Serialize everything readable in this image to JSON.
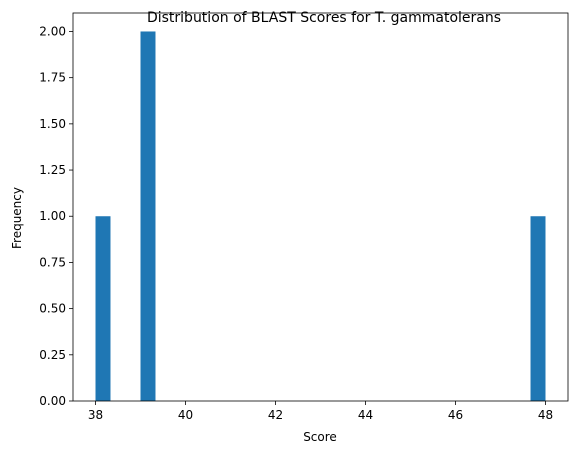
{
  "chart_data": {
    "type": "bar",
    "title": "Distribution of BLAST Scores for T. gammatolerans",
    "xlabel": "Score",
    "ylabel": "Frequency",
    "xlim": [
      37.5,
      48.5
    ],
    "ylim": [
      0,
      2.1
    ],
    "bar_color": "#1f77b4",
    "grid": false,
    "legend": "none",
    "bins": [
      {
        "start": 38.0,
        "end": 38.333,
        "count": 1
      },
      {
        "start": 39.0,
        "end": 39.333,
        "count": 2
      },
      {
        "start": 47.667,
        "end": 48.0,
        "count": 1
      }
    ],
    "x_ticks": [
      {
        "value": 38,
        "label": "38"
      },
      {
        "value": 40,
        "label": "40"
      },
      {
        "value": 42,
        "label": "42"
      },
      {
        "value": 44,
        "label": "44"
      },
      {
        "value": 46,
        "label": "46"
      },
      {
        "value": 48,
        "label": "48"
      }
    ],
    "y_ticks": [
      {
        "value": 0.0,
        "label": "0.00"
      },
      {
        "value": 0.25,
        "label": "0.25"
      },
      {
        "value": 0.5,
        "label": "0.50"
      },
      {
        "value": 0.75,
        "label": "0.75"
      },
      {
        "value": 1.0,
        "label": "1.00"
      },
      {
        "value": 1.25,
        "label": "1.25"
      },
      {
        "value": 1.5,
        "label": "1.50"
      },
      {
        "value": 1.75,
        "label": "1.75"
      },
      {
        "value": 2.0,
        "label": "2.00"
      }
    ]
  }
}
